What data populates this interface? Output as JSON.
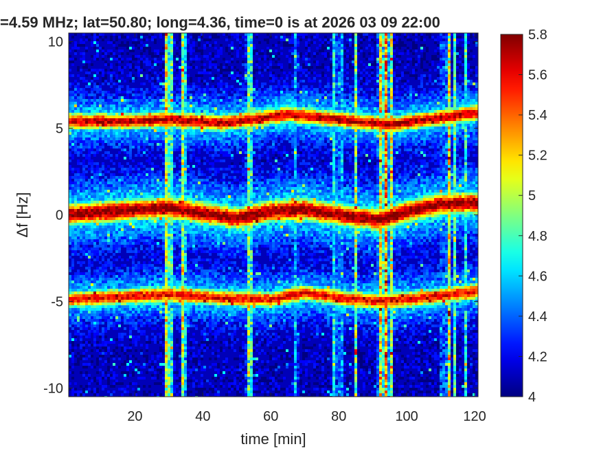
{
  "chart_data": {
    "type": "heatmap",
    "title": "=4.59 MHz;  lat=50.80; long=4.36, time=0 is at 2026 03 09 22:00",
    "xlabel": "time [min]",
    "ylabel": "Δf [Hz]",
    "xlim": [
      0.5,
      121
    ],
    "ylim": [
      -10.5,
      10.5
    ],
    "x_ticks": [
      "20",
      "40",
      "60",
      "80",
      "100",
      "120"
    ],
    "y_ticks": [
      "-10",
      "-5",
      "0",
      "5",
      "10"
    ],
    "colorbar": {
      "range": [
        4,
        5.8
      ],
      "ticks": [
        "4",
        "4.2",
        "4.4",
        "4.6",
        "4.8",
        "5",
        "5.2",
        "5.4",
        "5.6",
        "5.8"
      ],
      "colormap": "jet"
    },
    "background_level": 4.1,
    "bands": [
      {
        "description": "upper Doppler trace",
        "points": [
          [
            0,
            5.4
          ],
          [
            20,
            5.4
          ],
          [
            30,
            5.5
          ],
          [
            45,
            5.3
          ],
          [
            55,
            5.5
          ],
          [
            65,
            5.8
          ],
          [
            80,
            5.5
          ],
          [
            95,
            5.2
          ],
          [
            110,
            5.6
          ],
          [
            121,
            5.9
          ]
        ],
        "width_hz": 0.9,
        "peak": 5.7
      },
      {
        "description": "central carrier trace",
        "points": [
          [
            0,
            0.0
          ],
          [
            20,
            0.3
          ],
          [
            30,
            0.4
          ],
          [
            40,
            0.1
          ],
          [
            50,
            -0.2
          ],
          [
            60,
            0.2
          ],
          [
            70,
            0.3
          ],
          [
            80,
            0.0
          ],
          [
            92,
            -0.3
          ],
          [
            100,
            0.2
          ],
          [
            110,
            0.6
          ],
          [
            121,
            0.7
          ]
        ],
        "width_hz": 1.2,
        "peak": 5.8
      },
      {
        "description": "lower Doppler trace",
        "points": [
          [
            0,
            -4.9
          ],
          [
            20,
            -4.7
          ],
          [
            30,
            -4.6
          ],
          [
            45,
            -4.8
          ],
          [
            60,
            -4.9
          ],
          [
            70,
            -4.5
          ],
          [
            80,
            -4.8
          ],
          [
            92,
            -5.0
          ],
          [
            105,
            -4.8
          ],
          [
            121,
            -4.4
          ]
        ],
        "width_hz": 0.9,
        "peak": 5.6
      }
    ],
    "vertical_bursts": [
      {
        "time": 29.5,
        "width_min": 1.5,
        "level": 5.5
      },
      {
        "time": 31.0,
        "width_min": 0.8,
        "level": 5.1
      },
      {
        "time": 34.3,
        "width_min": 1.3,
        "level": 5.4
      },
      {
        "time": 53.8,
        "width_min": 1.8,
        "level": 5.2
      },
      {
        "time": 67.5,
        "width_min": 0.9,
        "level": 4.9
      },
      {
        "time": 78.8,
        "width_min": 1.2,
        "level": 5.0
      },
      {
        "time": 80.6,
        "width_min": 0.8,
        "level": 5.3
      },
      {
        "time": 85.0,
        "width_min": 1.1,
        "level": 5.2
      },
      {
        "time": 92.2,
        "width_min": 1.2,
        "level": 5.5
      },
      {
        "time": 93.8,
        "width_min": 1.6,
        "level": 5.7
      },
      {
        "time": 95.5,
        "width_min": 1.0,
        "level": 5.3
      },
      {
        "time": 110.5,
        "width_min": 0.8,
        "level": 5.0
      },
      {
        "time": 112.3,
        "width_min": 1.0,
        "level": 5.6
      },
      {
        "time": 114.2,
        "width_min": 0.8,
        "level": 5.1
      },
      {
        "time": 117.5,
        "width_min": 0.9,
        "level": 5.0
      }
    ]
  }
}
